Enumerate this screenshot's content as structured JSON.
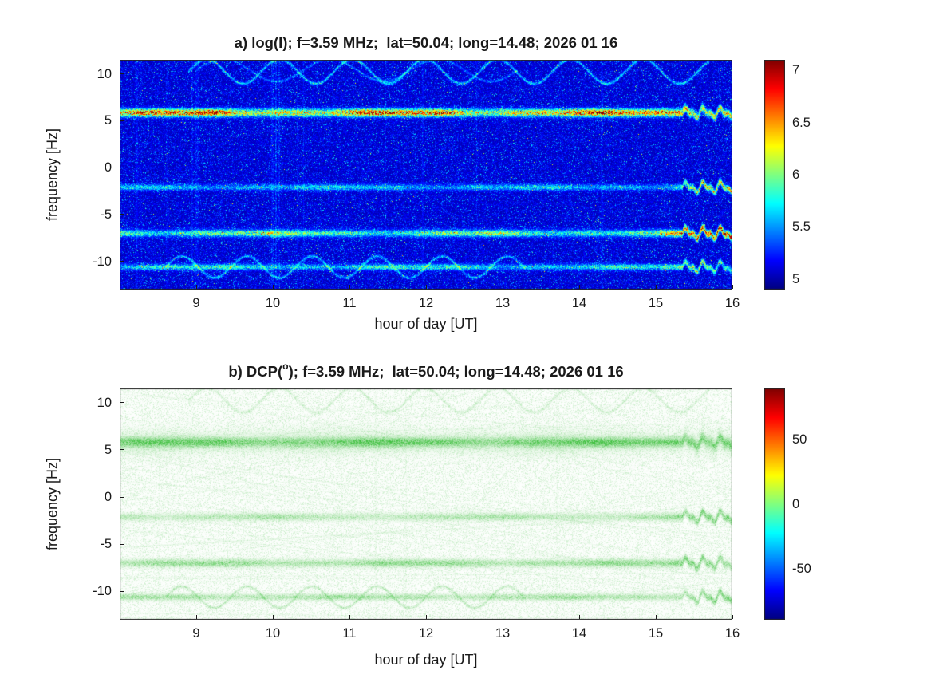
{
  "figure": {
    "panels": [
      {
        "label": "a",
        "title": {
          "pre": "a) log(I); f=3.59 MHz;  lat=50.04; long=14.48; 2026 01 16",
          "sup": "",
          "post": ""
        },
        "xlabel": "hour of day [UT]",
        "ylabel": "frequency [Hz]",
        "x_ticks": [
          "9",
          "10",
          "11",
          "12",
          "13",
          "14",
          "15",
          "16"
        ],
        "y_ticks": [
          "10",
          "5",
          "0",
          "-5",
          "-10"
        ],
        "colorbar_ticks": [
          "7",
          "6.5",
          "6",
          "5.5",
          "5"
        ]
      },
      {
        "label": "b",
        "title": {
          "pre": "b) DCP(",
          "sup": "o",
          "post": "); f=3.59 MHz;  lat=50.04; long=14.48; 2026 01 16"
        },
        "xlabel": "hour of day [UT]",
        "ylabel": "frequency [Hz]",
        "x_ticks": [
          "9",
          "10",
          "11",
          "12",
          "13",
          "14",
          "15",
          "16"
        ],
        "y_ticks": [
          "10",
          "5",
          "0",
          "-5",
          "-10"
        ],
        "colorbar_ticks": [
          "50",
          "0",
          "-50"
        ]
      }
    ]
  },
  "chart_data": [
    {
      "type": "heatmap",
      "title": "a) log(I); f=3.59 MHz; lat=50.04; long=14.48; 2026 01 16",
      "xlabel": "hour of day [UT]",
      "ylabel": "frequency [Hz]",
      "x_range": [
        8.0,
        16.0
      ],
      "y_range": [
        -13,
        11.5
      ],
      "x_ticks": [
        9,
        10,
        11,
        12,
        13,
        14,
        15,
        16
      ],
      "y_ticks": [
        10,
        5,
        0,
        -5,
        -10
      ],
      "colormap": "jet",
      "colorbar_range": [
        4.9,
        7.1
      ],
      "colorbar_ticks": [
        5,
        5.5,
        6,
        6.5,
        7
      ],
      "background_level": 5.1,
      "features": [
        {
          "kind": "band",
          "y": 5.85,
          "sigma": 0.28,
          "amp": 1.35,
          "right_boost": 1.15,
          "wiggle": 0.9,
          "note": "strong carrier line, yellow-orange-red, wiggles and brightens after 15.4 UT"
        },
        {
          "kind": "band",
          "y": -2.1,
          "sigma": 0.22,
          "amp": 0.5,
          "right_boost": 2.2,
          "wiggle": 1,
          "note": "weak cyan line, becomes orange and wavy after 15 UT"
        },
        {
          "kind": "band",
          "y": -7.0,
          "sigma": 0.25,
          "amp": 0.8,
          "right_boost": 1.8,
          "wiggle": 1,
          "note": "medium cyan-green line, orange and wavy after 15 UT"
        },
        {
          "kind": "band",
          "y": -10.6,
          "sigma": 0.22,
          "amp": 0.6,
          "right_boost": 1.8,
          "wiggle": 1,
          "note": "weak line with oscillation, wavy at right edge"
        },
        {
          "kind": "sinusoid",
          "y": 10.25,
          "amplitude": 1.3,
          "period": 0.95,
          "x_start": 8.9,
          "x_end": 15.7,
          "sigma": 0.12,
          "amp": 0.5,
          "note": "thin oscillating trace near top"
        },
        {
          "kind": "sinusoid",
          "y": 10.4,
          "amplitude": 1.2,
          "period": 1.4,
          "x_start": 9.0,
          "x_end": 13.2,
          "sigma": 0.1,
          "amp": 0.3,
          "note": "second fainter oscillating trace near top"
        },
        {
          "kind": "sinusoid",
          "y": -10.6,
          "amplitude": 1.15,
          "period": 0.85,
          "x_start": 8.6,
          "x_end": 13.3,
          "sigma": 0.11,
          "amp": 0.45,
          "note": "oscillation around -10.6 Hz line, 8.6-13.3 UT"
        }
      ]
    },
    {
      "type": "heatmap",
      "title": "b) DCP(°); f=3.59 MHz; lat=50.04; long=14.48; 2026 01 16",
      "xlabel": "hour of day [UT]",
      "ylabel": "frequency [Hz]",
      "x_range": [
        8.0,
        16.0
      ],
      "y_range": [
        -13,
        11.5
      ],
      "x_ticks": [
        9,
        10,
        11,
        12,
        13,
        14,
        15,
        16
      ],
      "y_ticks": [
        10,
        5,
        0,
        -5,
        -10
      ],
      "colormap": "jet",
      "colorbar_range": [
        -90,
        90
      ],
      "colorbar_ticks": [
        -50,
        0,
        50
      ],
      "background_level": 0,
      "rendering_note": "sparse pale-green speckle on white, values near 0 deg (green in jet)",
      "features": [
        {
          "kind": "band",
          "y": 5.8,
          "sigma": 0.34,
          "amp": 0.6,
          "right_boost": 1.2,
          "wiggle": 0.8,
          "note": "strong green carrier line"
        },
        {
          "kind": "band",
          "y": 5.8,
          "sigma": 0.9,
          "amp": 0.16,
          "right_boost": 1.0,
          "wiggle": 0.8,
          "note": "halo around carrier line"
        },
        {
          "kind": "band",
          "y": -2.1,
          "sigma": 0.26,
          "amp": 0.34,
          "right_boost": 1.7,
          "wiggle": 1,
          "note": "weak green line, wavy after 15 UT"
        },
        {
          "kind": "band",
          "y": -7.0,
          "sigma": 0.27,
          "amp": 0.48,
          "right_boost": 1.5,
          "wiggle": 1,
          "note": "medium green line"
        },
        {
          "kind": "band",
          "y": -10.6,
          "sigma": 0.23,
          "amp": 0.4,
          "right_boost": 1.5,
          "wiggle": 1,
          "note": "weak green line with oscillation"
        },
        {
          "kind": "sinusoid",
          "y": 10.25,
          "amplitude": 1.3,
          "period": 0.95,
          "x_start": 8.9,
          "x_end": 15.7,
          "sigma": 0.12,
          "amp": 0.18,
          "note": "faint oscillating trace near top"
        },
        {
          "kind": "sinusoid",
          "y": -10.6,
          "amplitude": 1.15,
          "period": 0.85,
          "x_start": 8.6,
          "x_end": 13.3,
          "sigma": 0.11,
          "amp": 0.26,
          "note": "oscillation around -10.6 Hz"
        }
      ]
    }
  ]
}
